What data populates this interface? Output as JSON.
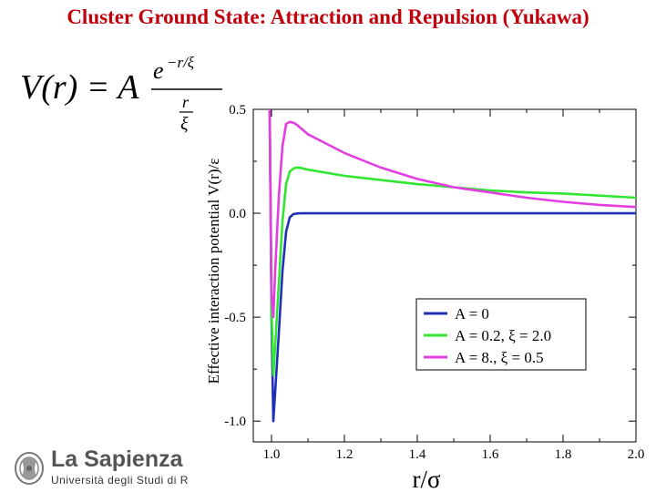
{
  "slide": {
    "title": "Cluster Ground State: Attraction and Repulsion (Yukawa)"
  },
  "formula": {
    "lhs": "V(r) = A",
    "numerator_base": "e",
    "numerator_exponent": "−r/ξ",
    "denominator_num": "r",
    "denominator_den": "ξ"
  },
  "logo": {
    "name": "La Sapienza",
    "subtitle": "Università degli Studi di R"
  },
  "colors": {
    "title": "#c0000b",
    "series_a0": "#1f2fb8",
    "series_a02": "#33e633",
    "series_a8": "#e23ee2"
  },
  "chart_data": {
    "type": "line",
    "xlabel": "r/σ",
    "ylabel": "Effective interaction potential V(r)/ε",
    "xlim": [
      0.95,
      2.0
    ],
    "ylim": [
      -1.1,
      0.5
    ],
    "x_ticks": [
      "1.0",
      "1.2",
      "1.4",
      "1.6",
      "1.8",
      "2.0"
    ],
    "x_tick_values": [
      1.0,
      1.2,
      1.4,
      1.6,
      1.8,
      2.0
    ],
    "y_ticks": [
      "0.5",
      "0.0",
      "-0.5",
      "-1.0"
    ],
    "y_tick_values": [
      0.5,
      0.0,
      -0.5,
      -1.0
    ],
    "grid": false,
    "legend_position": "bottom-right",
    "series": [
      {
        "name": "A = 0",
        "color": "#1f2fb8",
        "x": [
          0.995,
          1.0,
          1.005,
          1.01,
          1.02,
          1.03,
          1.04,
          1.05,
          1.06,
          1.07,
          1.08,
          1.1,
          1.2,
          1.4,
          1.6,
          1.8,
          2.0
        ],
        "y": [
          0.5,
          -0.5,
          -1.0,
          -0.86,
          -0.58,
          -0.28,
          -0.09,
          -0.02,
          -0.004,
          -0.001,
          0.0,
          0.0,
          0.0,
          0.0,
          0.0,
          0.0,
          0.0
        ]
      },
      {
        "name": "A = 0.2, ξ = 2.0",
        "color": "#33e633",
        "x": [
          0.995,
          1.0,
          1.005,
          1.01,
          1.02,
          1.03,
          1.04,
          1.05,
          1.06,
          1.07,
          1.08,
          1.1,
          1.2,
          1.3,
          1.4,
          1.5,
          1.6,
          1.7,
          1.8,
          1.9,
          2.0
        ],
        "y": [
          0.5,
          -0.45,
          -0.78,
          -0.64,
          -0.34,
          -0.04,
          0.14,
          0.2,
          0.215,
          0.22,
          0.218,
          0.21,
          0.18,
          0.16,
          0.14,
          0.125,
          0.11,
          0.1,
          0.095,
          0.085,
          0.075
        ]
      },
      {
        "name": "A = 8., ξ = 0.5",
        "color": "#e23ee2",
        "x": [
          0.995,
          1.0,
          1.005,
          1.01,
          1.02,
          1.03,
          1.04,
          1.05,
          1.06,
          1.07,
          1.08,
          1.1,
          1.2,
          1.3,
          1.4,
          1.5,
          1.6,
          1.7,
          1.8,
          1.9,
          2.0
        ],
        "y": [
          0.5,
          -0.4,
          -0.5,
          -0.28,
          0.08,
          0.32,
          0.43,
          0.44,
          0.435,
          0.425,
          0.41,
          0.38,
          0.29,
          0.22,
          0.165,
          0.125,
          0.1,
          0.075,
          0.055,
          0.04,
          0.03
        ]
      }
    ]
  }
}
